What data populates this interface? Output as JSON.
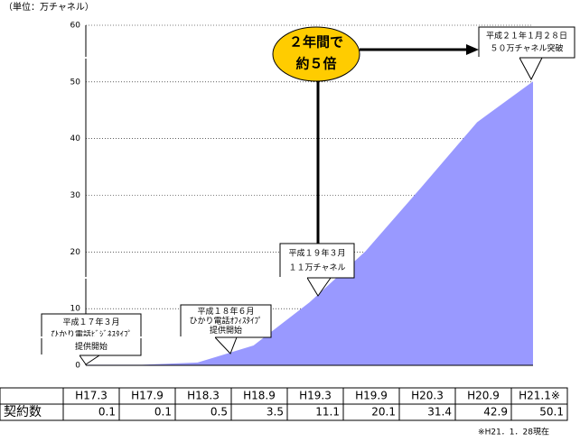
{
  "chart_data": {
    "type": "area",
    "unit_label": "（単位：万チャネル）",
    "categories": [
      "H17.3",
      "H17.9",
      "H18.3",
      "H18.9",
      "H19.3",
      "H19.9",
      "H20.3",
      "H20.9",
      "H21.1※"
    ],
    "row_label": "契約数",
    "values": [
      0.1,
      0.1,
      0.5,
      3.5,
      11.1,
      20.1,
      31.4,
      42.9,
      50.1
    ],
    "color": "#9999ff",
    "ylim": [
      0,
      60
    ],
    "yticks": [
      0,
      10,
      20,
      30,
      40,
      50,
      60
    ],
    "grid": true,
    "annotations": [
      {
        "lines": [
          "平成１７年３月",
          "ひかり電話ﾋﾞｼﾞﾈｽﾀｲﾌﾟ",
          "提供開始"
        ]
      },
      {
        "lines": [
          "平成１８年６月",
          "ひかり電話ｵﾌｨｽﾀｲﾌﾟ",
          "提供開始"
        ]
      },
      {
        "lines": [
          "平成１９年３月",
          "１１万チャネル"
        ]
      },
      {
        "lines": [
          "平成２１年１月２８日",
          "５０万チャネル突破"
        ]
      },
      {
        "lines": [
          "２年間で",
          "約５倍"
        ]
      }
    ],
    "footnote": "※H21．1．28現在"
  }
}
